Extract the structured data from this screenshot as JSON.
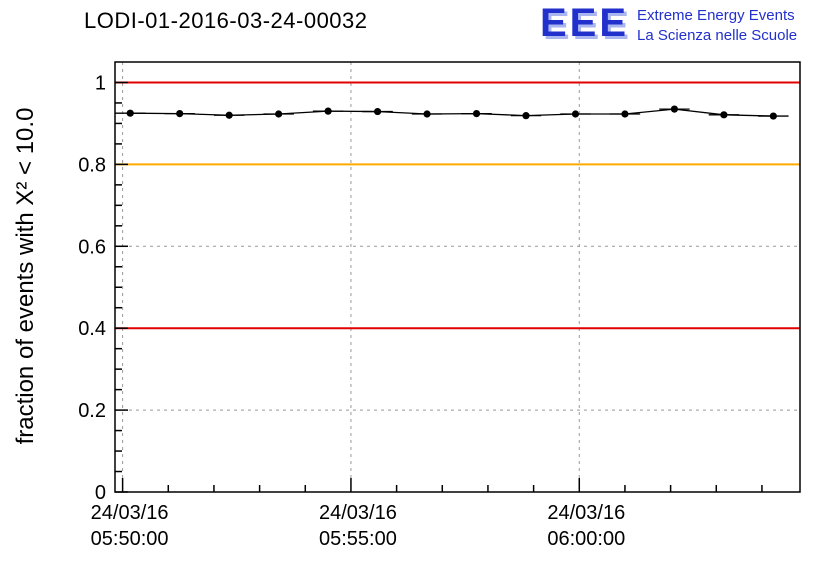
{
  "header": {
    "title": "LODI-01-2016-03-24-00032",
    "logo": {
      "text": "EEE",
      "tagline_en": "Extreme Energy Events",
      "tagline_it": "La Scienza nelle Scuole",
      "color": "#2230cc",
      "shadow_color": "#a9b6ef"
    }
  },
  "chart_data": {
    "type": "line",
    "title": "LODI-01-2016-03-24-00032",
    "xlabel": "",
    "ylabel": "fraction of events with X² < 10.0",
    "ylim": [
      0,
      1.05
    ],
    "grid": true,
    "grid_color": "#999999",
    "y_ticks": [
      0,
      0.2,
      0.4,
      0.6,
      0.8,
      1
    ],
    "y_tick_labels": [
      "0",
      "0.2",
      "0.4",
      "0.6",
      "0.8",
      "1"
    ],
    "y_minor_step": 0.05,
    "x_domain_seconds": [
      0,
      900
    ],
    "x_minor_step_seconds": 60,
    "x_major_ticks": [
      {
        "t": 10,
        "date": "24/03/16",
        "time": "05:50:00"
      },
      {
        "t": 310,
        "date": "24/03/16",
        "time": "05:55:00"
      },
      {
        "t": 610,
        "date": "24/03/16",
        "time": "06:00:00"
      }
    ],
    "reference_lines": [
      {
        "y": 1.0,
        "color": "#e00000"
      },
      {
        "y": 0.8,
        "color": "#ffaa00"
      },
      {
        "y": 0.4,
        "color": "#e00000"
      }
    ],
    "series": [
      {
        "name": "fraction-of-events-chi2-lt-10",
        "color": "#000000",
        "marker": "circle",
        "x_err_seconds": 20,
        "y_err": 0.004,
        "points": [
          [
            20,
            0.925
          ],
          [
            85,
            0.924
          ],
          [
            150,
            0.92
          ],
          [
            215,
            0.923
          ],
          [
            280,
            0.93
          ],
          [
            345,
            0.929
          ],
          [
            410,
            0.923
          ],
          [
            475,
            0.924
          ],
          [
            540,
            0.919
          ],
          [
            605,
            0.923
          ],
          [
            670,
            0.923
          ],
          [
            735,
            0.935
          ],
          [
            800,
            0.921
          ],
          [
            865,
            0.918
          ]
        ]
      }
    ]
  }
}
